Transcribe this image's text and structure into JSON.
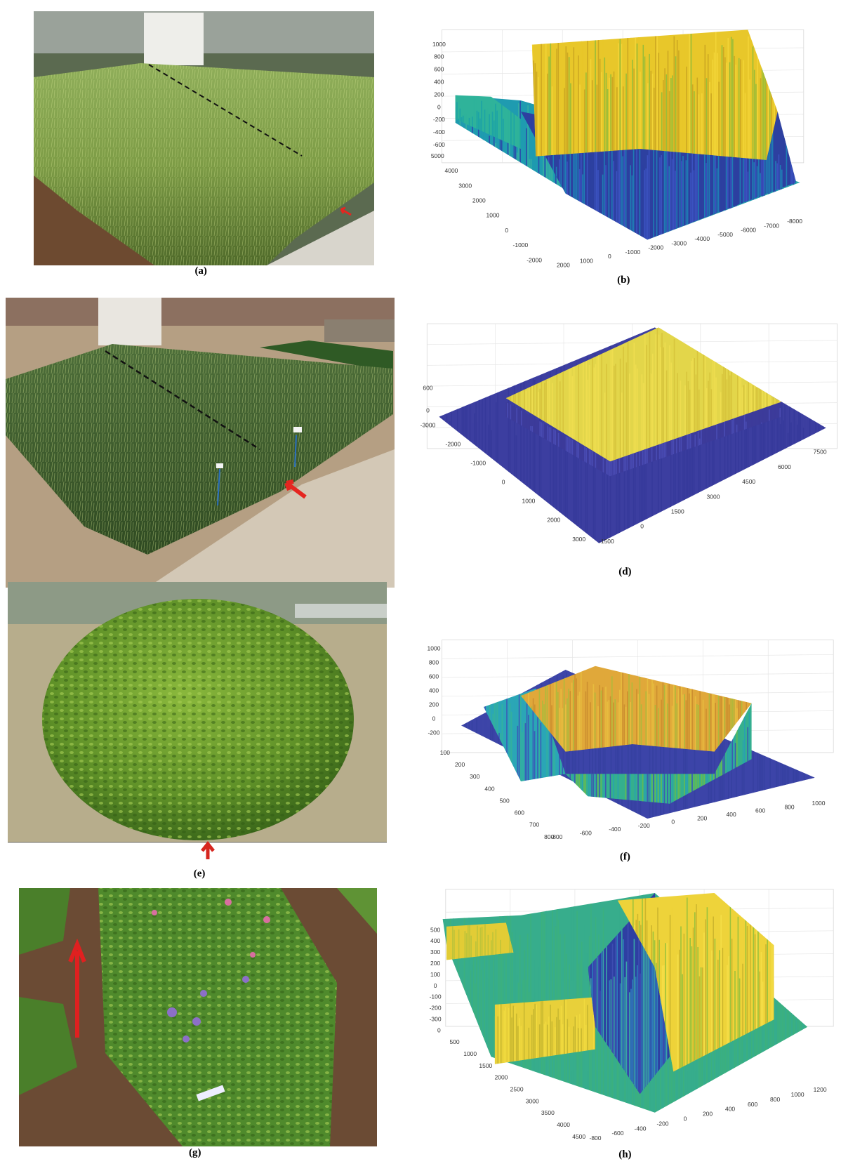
{
  "figure": {
    "panels": [
      {
        "label": "(a)"
      },
      {
        "label": "(b)",
        "axes": {
          "z": [
            1000,
            800,
            600,
            400,
            200,
            0,
            -200,
            -400,
            -600
          ],
          "left": [
            5000,
            4000,
            3000,
            2000,
            1000,
            0,
            -1000,
            -2000
          ],
          "right": [
            2000,
            1000,
            0,
            -1000,
            -2000,
            -3000,
            -4000,
            -5000,
            -6000,
            -7000,
            -8000
          ]
        }
      },
      {
        "label": "(d)",
        "axes": {
          "z": [
            600,
            0
          ],
          "left": [
            -3000,
            -2000,
            -1000,
            0,
            1000,
            2000,
            3000
          ],
          "right": [
            -1500,
            0,
            1500,
            3000,
            4500,
            6000,
            7500
          ]
        }
      },
      {
        "label": "(e)"
      },
      {
        "label": "(f)",
        "axes": {
          "z": [
            1000,
            800,
            600,
            400,
            200,
            0,
            -200
          ],
          "left": [
            100,
            200,
            300,
            400,
            500,
            600,
            700,
            800
          ],
          "right": [
            -800,
            -600,
            -400,
            -200,
            0,
            200,
            400,
            600,
            800,
            1000
          ]
        }
      },
      {
        "label": "(g)"
      },
      {
        "label": "(h)",
        "axes": {
          "z": [
            500,
            400,
            300,
            200,
            100,
            0,
            -100,
            -200,
            -300
          ],
          "left": [
            0,
            500,
            1000,
            1500,
            2000,
            2500,
            3000,
            3500,
            4000,
            4500
          ],
          "right": [
            -800,
            -600,
            -400,
            -200,
            0,
            200,
            400,
            600,
            800,
            1000,
            1200
          ]
        }
      }
    ]
  }
}
